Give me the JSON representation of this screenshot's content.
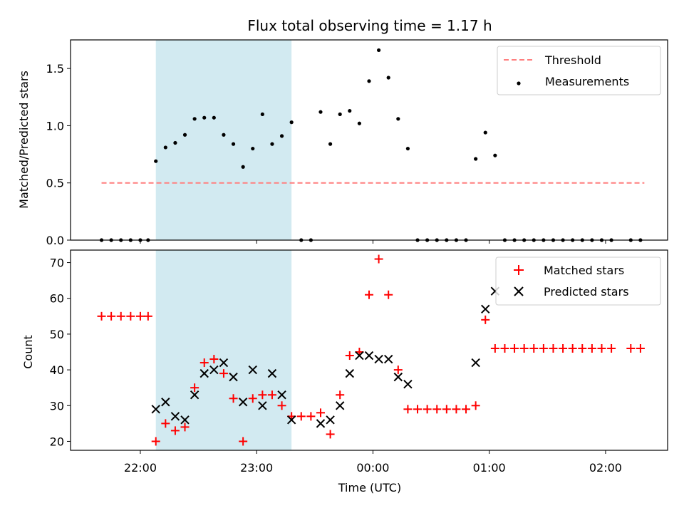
{
  "chart_data": [
    {
      "type": "scatter",
      "title": "Flux total observing time = 1.17 h",
      "ylabel": "Matched/Predicted stars",
      "ylim": [
        0,
        1.75
      ],
      "yticks": [
        0.0,
        0.5,
        1.0,
        1.5
      ],
      "ytick_labels": [
        "0.0",
        "0.5",
        "1.0",
        "1.5"
      ],
      "xlim": [
        "21:24",
        "02:32"
      ],
      "shade": {
        "start": "22:08",
        "end": "23:18",
        "color": "#add8e6"
      },
      "legend": {
        "position": "top-right",
        "entries": [
          "Threshold",
          "Measurements"
        ]
      },
      "threshold": {
        "name": "Threshold",
        "value": 0.5,
        "x_start": "21:40",
        "x_end": "02:20",
        "color": "#ff7f7f"
      },
      "series": [
        {
          "name": "Measurements",
          "color": "#000000",
          "points": [
            [
              "21:40",
              0.0
            ],
            [
              "21:45",
              0.0
            ],
            [
              "21:50",
              0.0
            ],
            [
              "21:55",
              0.0
            ],
            [
              "22:00",
              0.0
            ],
            [
              "22:04",
              0.0
            ],
            [
              "22:08",
              0.69
            ],
            [
              "22:13",
              0.81
            ],
            [
              "22:18",
              0.85
            ],
            [
              "22:23",
              0.92
            ],
            [
              "22:28",
              1.06
            ],
            [
              "22:33",
              1.07
            ],
            [
              "22:38",
              1.07
            ],
            [
              "22:43",
              0.92
            ],
            [
              "22:48",
              0.84
            ],
            [
              "22:53",
              0.64
            ],
            [
              "22:58",
              0.8
            ],
            [
              "23:03",
              1.1
            ],
            [
              "23:08",
              0.84
            ],
            [
              "23:13",
              0.91
            ],
            [
              "23:18",
              1.03
            ],
            [
              "23:23",
              0.0
            ],
            [
              "23:28",
              0.0
            ],
            [
              "23:33",
              1.12
            ],
            [
              "23:38",
              0.84
            ],
            [
              "23:43",
              1.1
            ],
            [
              "23:48",
              1.13
            ],
            [
              "23:53",
              1.02
            ],
            [
              "23:58",
              1.39
            ],
            [
              "00:03",
              1.66
            ],
            [
              "00:08",
              1.42
            ],
            [
              "00:13",
              1.06
            ],
            [
              "00:18",
              0.8
            ],
            [
              "00:23",
              0.0
            ],
            [
              "00:28",
              0.0
            ],
            [
              "00:33",
              0.0
            ],
            [
              "00:38",
              0.0
            ],
            [
              "00:43",
              0.0
            ],
            [
              "00:48",
              0.0
            ],
            [
              "00:53",
              0.71
            ],
            [
              "00:58",
              0.94
            ],
            [
              "01:03",
              0.74
            ],
            [
              "01:08",
              0.0
            ],
            [
              "01:13",
              0.0
            ],
            [
              "01:18",
              0.0
            ],
            [
              "01:23",
              0.0
            ],
            [
              "01:28",
              0.0
            ],
            [
              "01:33",
              0.0
            ],
            [
              "01:38",
              0.0
            ],
            [
              "01:43",
              0.0
            ],
            [
              "01:48",
              0.0
            ],
            [
              "01:53",
              0.0
            ],
            [
              "01:58",
              0.0
            ],
            [
              "02:03",
              0.0
            ],
            [
              "02:13",
              0.0
            ],
            [
              "02:18",
              0.0
            ]
          ]
        }
      ]
    },
    {
      "type": "scatter",
      "xlabel": "Time (UTC)",
      "ylabel": "Count",
      "ylim": [
        17.5,
        73.5
      ],
      "yticks": [
        20,
        30,
        40,
        50,
        60,
        70
      ],
      "ytick_labels": [
        "20",
        "30",
        "40",
        "50",
        "60",
        "70"
      ],
      "xlim": [
        "21:24",
        "02:32"
      ],
      "xticks": [
        "22:00",
        "23:00",
        "00:00",
        "01:00",
        "02:00"
      ],
      "xtick_labels": [
        "22:00",
        "23:00",
        "00:00",
        "01:00",
        "02:00"
      ],
      "shade": {
        "start": "22:08",
        "end": "23:18",
        "color": "#add8e6"
      },
      "legend": {
        "position": "top-right",
        "entries": [
          "Matched stars",
          "Predicted stars"
        ]
      },
      "series": [
        {
          "name": "Matched stars",
          "marker": "plus",
          "color": "#ff0000",
          "points": [
            [
              "21:40",
              55
            ],
            [
              "21:45",
              55
            ],
            [
              "21:50",
              55
            ],
            [
              "21:55",
              55
            ],
            [
              "22:00",
              55
            ],
            [
              "22:04",
              55
            ],
            [
              "22:08",
              20
            ],
            [
              "22:13",
              25
            ],
            [
              "22:18",
              23
            ],
            [
              "22:23",
              24
            ],
            [
              "22:28",
              35
            ],
            [
              "22:33",
              42
            ],
            [
              "22:38",
              43
            ],
            [
              "22:43",
              39
            ],
            [
              "22:48",
              32
            ],
            [
              "22:53",
              20
            ],
            [
              "22:58",
              32
            ],
            [
              "23:03",
              33
            ],
            [
              "23:08",
              33
            ],
            [
              "23:13",
              30
            ],
            [
              "23:18",
              27
            ],
            [
              "23:23",
              27
            ],
            [
              "23:28",
              27
            ],
            [
              "23:33",
              28
            ],
            [
              "23:38",
              22
            ],
            [
              "23:43",
              33
            ],
            [
              "23:48",
              44
            ],
            [
              "23:53",
              45
            ],
            [
              "23:58",
              61
            ],
            [
              "00:03",
              71
            ],
            [
              "00:08",
              61
            ],
            [
              "00:13",
              40
            ],
            [
              "00:18",
              29
            ],
            [
              "00:23",
              29
            ],
            [
              "00:28",
              29
            ],
            [
              "00:33",
              29
            ],
            [
              "00:38",
              29
            ],
            [
              "00:43",
              29
            ],
            [
              "00:48",
              29
            ],
            [
              "00:53",
              30
            ],
            [
              "00:58",
              54
            ],
            [
              "01:03",
              46
            ],
            [
              "01:08",
              46
            ],
            [
              "01:13",
              46
            ],
            [
              "01:18",
              46
            ],
            [
              "01:23",
              46
            ],
            [
              "01:28",
              46
            ],
            [
              "01:33",
              46
            ],
            [
              "01:38",
              46
            ],
            [
              "01:43",
              46
            ],
            [
              "01:48",
              46
            ],
            [
              "01:53",
              46
            ],
            [
              "01:58",
              46
            ],
            [
              "02:03",
              46
            ],
            [
              "02:13",
              46
            ],
            [
              "02:18",
              46
            ]
          ]
        },
        {
          "name": "Predicted stars",
          "marker": "x",
          "color": "#000000",
          "points": [
            [
              "22:08",
              29
            ],
            [
              "22:13",
              31
            ],
            [
              "22:18",
              27
            ],
            [
              "22:23",
              26
            ],
            [
              "22:28",
              33
            ],
            [
              "22:33",
              39
            ],
            [
              "22:38",
              40
            ],
            [
              "22:43",
              42
            ],
            [
              "22:48",
              38
            ],
            [
              "22:53",
              31
            ],
            [
              "22:58",
              40
            ],
            [
              "23:03",
              30
            ],
            [
              "23:08",
              39
            ],
            [
              "23:13",
              33
            ],
            [
              "23:18",
              26
            ],
            [
              "23:33",
              25
            ],
            [
              "23:38",
              26
            ],
            [
              "23:43",
              30
            ],
            [
              "23:48",
              39
            ],
            [
              "23:53",
              44
            ],
            [
              "23:58",
              44
            ],
            [
              "00:03",
              43
            ],
            [
              "00:08",
              43
            ],
            [
              "00:13",
              38
            ],
            [
              "00:18",
              36
            ],
            [
              "00:53",
              42
            ],
            [
              "00:58",
              57
            ],
            [
              "01:03",
              62
            ]
          ]
        }
      ]
    }
  ]
}
